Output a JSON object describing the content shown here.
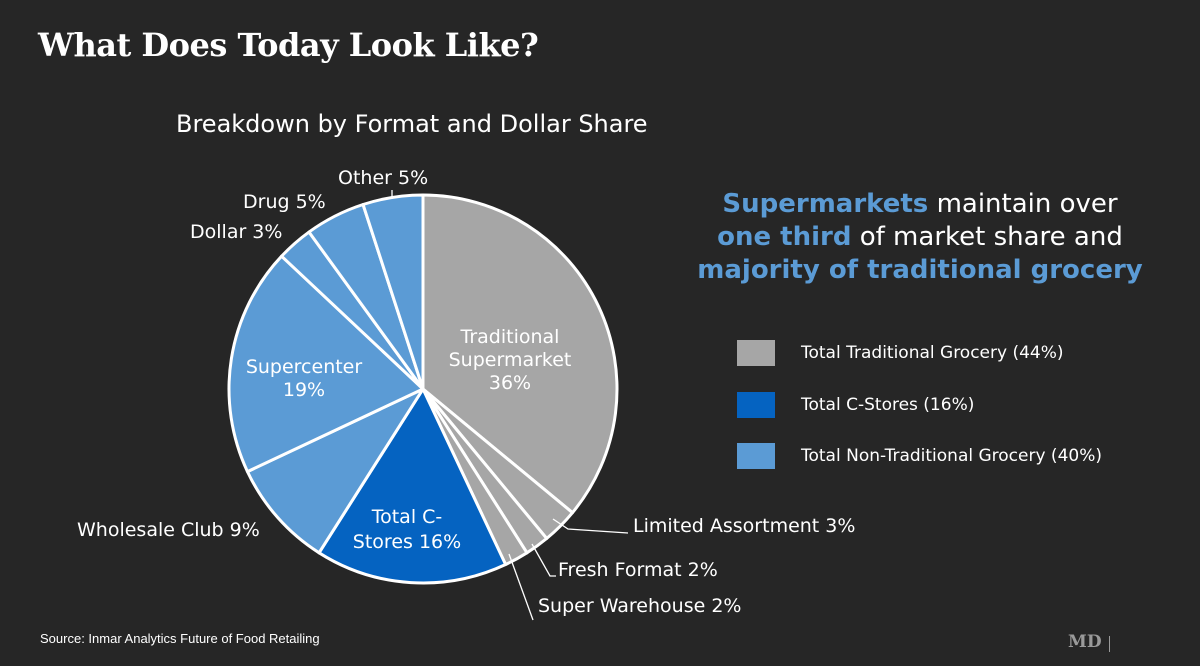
{
  "slide": {
    "title": "What Does Today Look Like?"
  },
  "callout": {
    "line1_hl": "Supermarkets",
    "line1_rest": "maintain over",
    "line2_hl": "one third",
    "line2_rest": "of market share and",
    "line3_hl": "majority of traditional grocery",
    "highlight_color": "#5b9bd5"
  },
  "legend": [
    {
      "label": "Total Traditional Grocery (44%)",
      "color": "#a6a6a6"
    },
    {
      "label": "Total C-Stores (16%)",
      "color": "#0563c1"
    },
    {
      "label": "Total Non-Traditional Grocery (40%)",
      "color": "#5b9bd5"
    }
  ],
  "source": "Source: Inmar Analytics Future of Food Retailing",
  "logo": "MD",
  "chart_data": {
    "type": "pie",
    "title": "Breakdown by Format and Dollar Share",
    "slices": [
      {
        "label": "Traditional Supermarket 36%",
        "value": 36,
        "color": "#a6a6a6",
        "label_lines": [
          "Traditional",
          "Supermarket",
          "36%"
        ],
        "label_position": "inside"
      },
      {
        "label": "Limited Assortment 3%",
        "value": 3,
        "color": "#a6a6a6",
        "label_lines": [
          "Limited Assortment 3%"
        ],
        "label_position": "outside-leader"
      },
      {
        "label": "Fresh Format 2%",
        "value": 2,
        "color": "#a6a6a6",
        "label_lines": [
          "Fresh Format 2%"
        ],
        "label_position": "outside-leader"
      },
      {
        "label": "Super Warehouse 2%",
        "value": 2,
        "color": "#a6a6a6",
        "label_lines": [
          "Super Warehouse 2%"
        ],
        "label_position": "outside-leader"
      },
      {
        "label": "Total C-Stores 16%",
        "value": 16,
        "color": "#0563c1",
        "label_lines": [
          "Total C-",
          "Stores 16%"
        ],
        "label_position": "inside"
      },
      {
        "label": "Wholesale Club 9%",
        "value": 9,
        "color": "#5b9bd5",
        "label_lines": [
          "Wholesale Club 9%"
        ],
        "label_position": "outside"
      },
      {
        "label": "Supercenter 19%",
        "value": 19,
        "color": "#5b9bd5",
        "label_lines": [
          "Supercenter",
          "19%"
        ],
        "label_position": "inside"
      },
      {
        "label": "Dollar 3%",
        "value": 3,
        "color": "#5b9bd5",
        "label_lines": [
          "Dollar 3%"
        ],
        "label_position": "outside"
      },
      {
        "label": "Drug 5%",
        "value": 5,
        "color": "#5b9bd5",
        "label_lines": [
          "Drug 5%"
        ],
        "label_position": "outside"
      },
      {
        "label": "Other 5%",
        "value": 5,
        "color": "#5b9bd5",
        "label_lines": [
          "Other 5%"
        ],
        "label_position": "outside"
      }
    ]
  }
}
